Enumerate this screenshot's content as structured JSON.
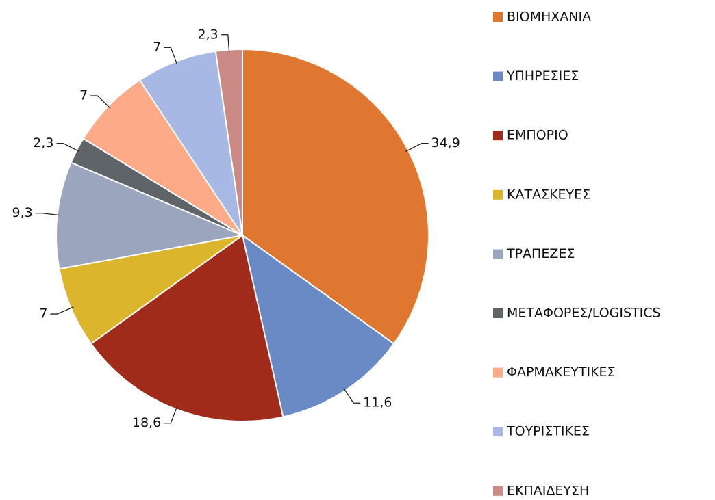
{
  "chart_data": {
    "type": "pie",
    "categories": [
      "ΒΙΟΜΗΧΑΝΙΑ",
      "ΥΠΗΡΕΣΙΕΣ",
      "ΕΜΠΟΡΙΟ",
      "ΚΑΤΑΣΚΕΥΕΣ",
      "ΤΡΑΠΕΖΕΣ",
      "ΜΕΤΑΦΟΡΕΣ/LOGISTICS",
      "ΦΑΡΜΑΚΕΥΤΙΚΕΣ",
      "ΤΟΥΡΙΣΤΙΚΕΣ",
      "ΕΚΠΑΙΔΕΥΣΗ"
    ],
    "values": [
      34.9,
      11.6,
      18.6,
      7,
      9.3,
      2.3,
      7,
      7,
      2.3
    ],
    "value_labels": [
      "34,9",
      "11,6",
      "18,6",
      "7",
      "9,3",
      "2,3",
      "7",
      "7",
      "2,3"
    ],
    "colors": [
      "#e07730",
      "#6a8ac6",
      "#a02b1a",
      "#dbb52c",
      "#9ba5be",
      "#5f6469",
      "#fdaa88",
      "#a6b8e3",
      "#cc8a87"
    ],
    "legend": "right"
  }
}
